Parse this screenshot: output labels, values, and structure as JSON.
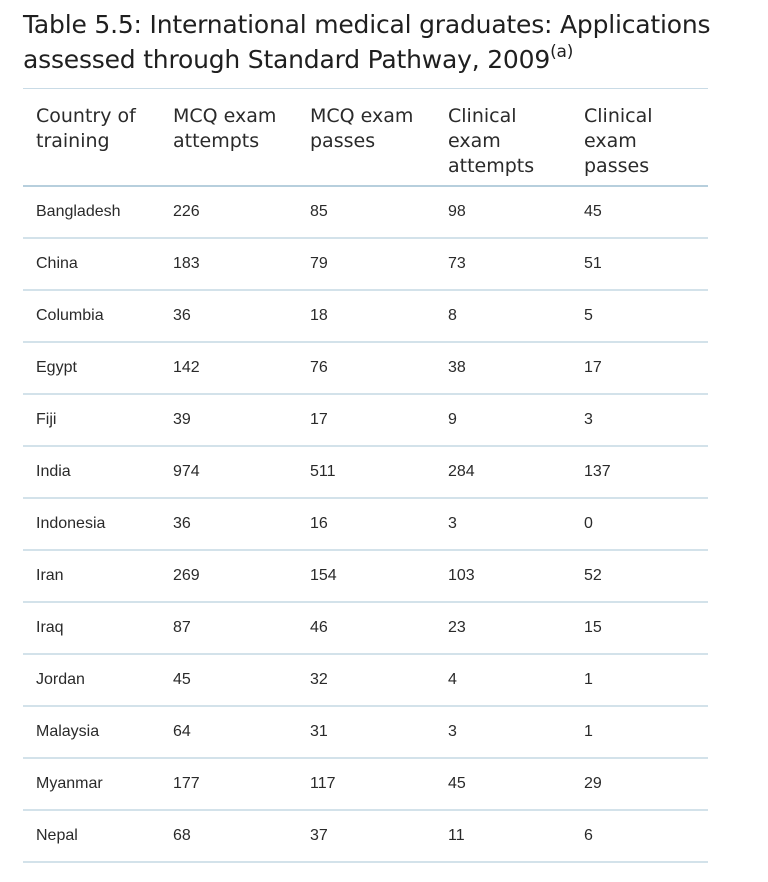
{
  "title": {
    "text": "Table 5.5: International medical graduates: Applications assessed through Standard Pathway, 2009",
    "footnote_marker": "(a)"
  },
  "table": {
    "headers": [
      "Country of training",
      "MCQ exam attempts",
      "MCQ exam passes",
      "Clinical exam attempts",
      "Clinical exam passes"
    ],
    "rows": [
      [
        "Bangladesh",
        "226",
        "85",
        "98",
        "45"
      ],
      [
        "China",
        "183",
        "79",
        "73",
        "51"
      ],
      [
        "Columbia",
        "36",
        "18",
        "8",
        "5"
      ],
      [
        "Egypt",
        "142",
        "76",
        "38",
        "17"
      ],
      [
        "Fiji",
        "39",
        "17",
        "9",
        "3"
      ],
      [
        "India",
        "974",
        "511",
        "284",
        "137"
      ],
      [
        "Indonesia",
        "36",
        "16",
        "3",
        "0"
      ],
      [
        "Iran",
        "269",
        "154",
        "103",
        "52"
      ],
      [
        "Iraq",
        "87",
        "46",
        "23",
        "15"
      ],
      [
        "Jordan",
        "45",
        "32",
        "4",
        "1"
      ],
      [
        "Malaysia",
        "64",
        "31",
        "3",
        "1"
      ],
      [
        "Myanmar",
        "177",
        "117",
        "45",
        "29"
      ],
      [
        "Nepal",
        "68",
        "37",
        "11",
        "6"
      ]
    ]
  }
}
